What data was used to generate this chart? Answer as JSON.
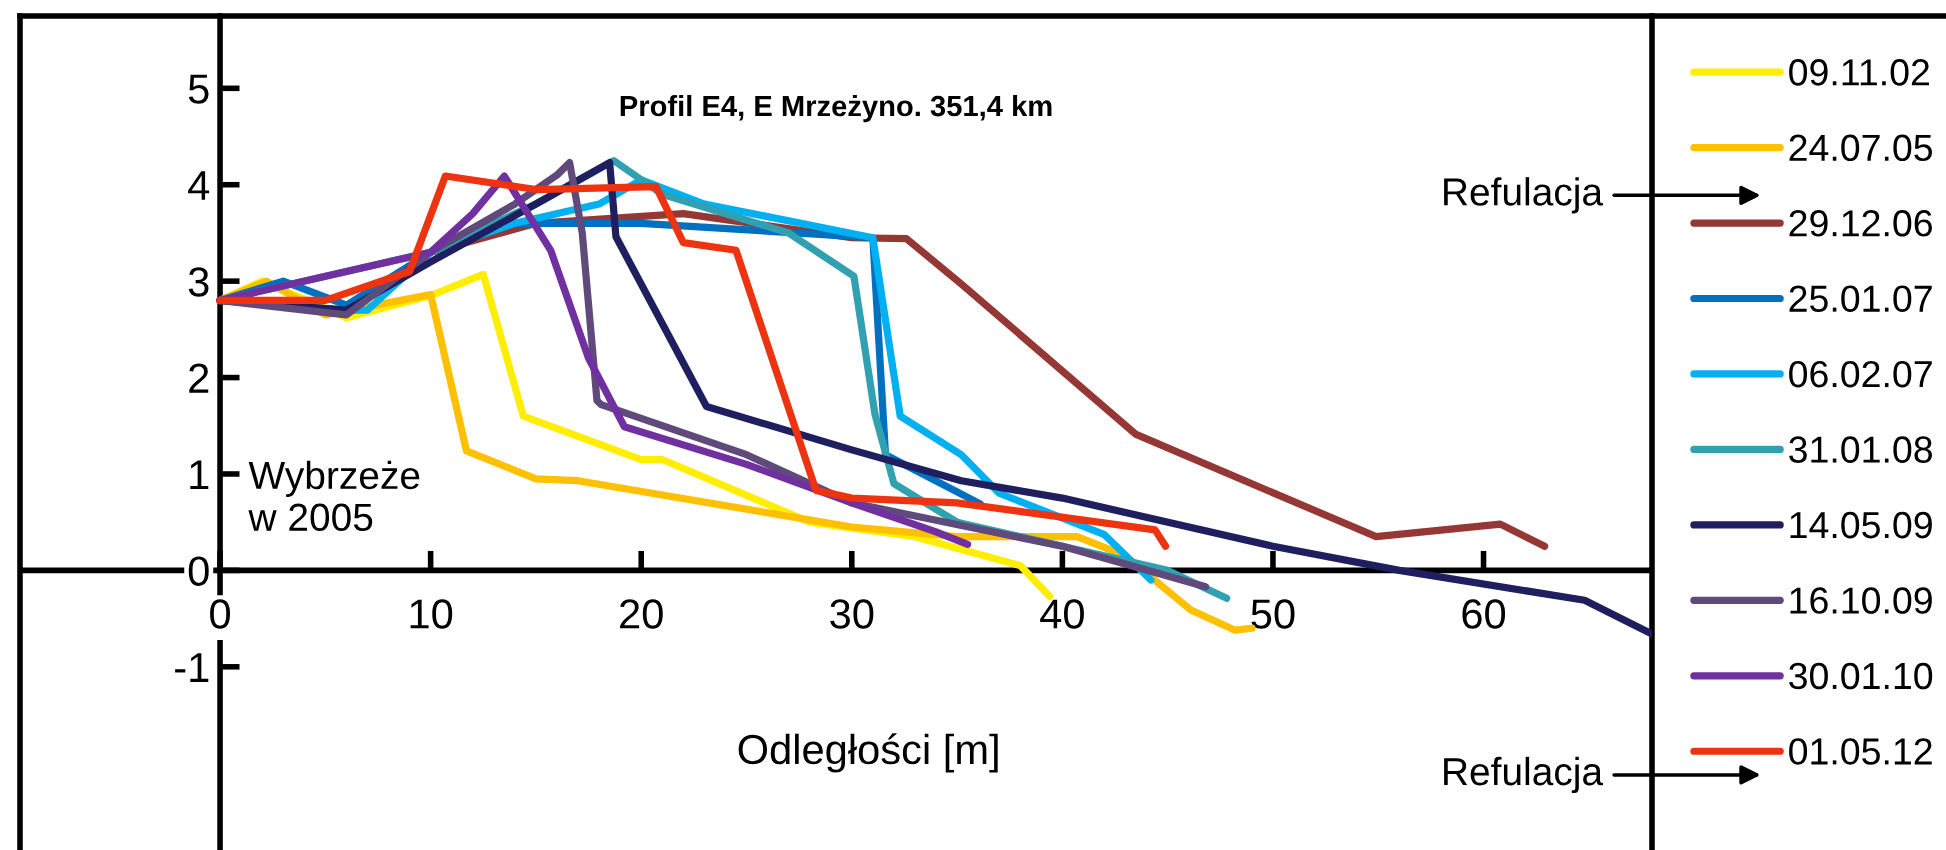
{
  "chart_data": {
    "type": "line",
    "title": "Profil E4, E Mrzeżyno. 351,4 km",
    "xlabel": "Odległości [m]",
    "xlim": [
      -9.5,
      68
    ],
    "ylim": [
      -2.9,
      5.75
    ],
    "xticks": [
      0,
      10,
      20,
      30,
      40,
      50,
      60
    ],
    "yticks": [
      -1,
      0,
      1,
      2,
      3,
      4,
      5
    ],
    "grid": false,
    "legend": "right",
    "marker": "none",
    "line_style": "solid",
    "annotations": [
      "Wybrzeże\nw 2005",
      "Refulacja",
      "Refulacja"
    ],
    "series": [
      {
        "name": "09.11.02",
        "color": "#ffee00",
        "x": [
          0,
          2,
          6,
          10,
          12.5,
          14.4,
          20,
          21,
          28,
          33,
          38,
          39.4
        ],
        "values": [
          2.8,
          3.0,
          2.62,
          2.85,
          3.07,
          1.6,
          1.15,
          1.15,
          0.5,
          0.35,
          0.05,
          -0.27
        ]
      },
      {
        "name": "24.07.05",
        "color": "#ffc000",
        "x": [
          0,
          2.2,
          5,
          10,
          11.7,
          15,
          17,
          30,
          35,
          40.7,
          43,
          46.1,
          48.2,
          49
        ],
        "values": [
          2.8,
          3.0,
          2.65,
          2.86,
          1.24,
          0.95,
          0.93,
          0.45,
          0.35,
          0.35,
          0.15,
          -0.41,
          -0.62,
          -0.6
        ]
      },
      {
        "name": "29.12.06",
        "color": "#953735",
        "x": [
          0,
          6,
          10,
          15,
          22,
          30,
          32.6,
          35.2,
          43.5,
          54.9,
          60.8,
          62.9
        ],
        "values": [
          2.8,
          2.7,
          3.3,
          3.6,
          3.7,
          3.45,
          3.44,
          2.97,
          1.41,
          0.35,
          0.48,
          0.25
        ]
      },
      {
        "name": "25.01.07",
        "color": "#0070c0",
        "x": [
          0,
          3,
          6,
          10,
          13,
          20,
          31,
          31.6,
          36.1
        ],
        "values": [
          2.8,
          3.0,
          2.75,
          3.3,
          3.6,
          3.6,
          3.45,
          1.2,
          0.69
        ]
      },
      {
        "name": "06.02.07",
        "color": "#00b0f0",
        "x": [
          0,
          5,
          7,
          10,
          14,
          18,
          20,
          23,
          31,
          32.3,
          35.2,
          37,
          42,
          44.2
        ],
        "values": [
          2.8,
          2.7,
          2.7,
          3.3,
          3.6,
          3.8,
          4.05,
          3.8,
          3.45,
          1.6,
          1.2,
          0.8,
          0.37,
          -0.1
        ]
      },
      {
        "name": "31.01.08",
        "color": "#31a0b0",
        "x": [
          0,
          10,
          15,
          18.7,
          21,
          27,
          30.1,
          31.1,
          32,
          35,
          40,
          45,
          47.8
        ],
        "values": [
          2.8,
          3.3,
          3.8,
          4.25,
          3.9,
          3.5,
          3.05,
          1.62,
          0.9,
          0.5,
          0.25,
          0.0,
          -0.29
        ]
      },
      {
        "name": "14.05.09",
        "color": "#1f1f5f",
        "x": [
          0,
          6,
          10,
          15,
          18.5,
          18.8,
          23.1,
          30,
          35.2,
          40,
          50,
          56,
          64.8,
          68
        ],
        "values": [
          2.8,
          2.7,
          3.2,
          3.8,
          4.23,
          3.46,
          1.7,
          1.25,
          0.93,
          0.75,
          0.25,
          0.0,
          -0.31,
          -0.66
        ]
      },
      {
        "name": "16.10.09",
        "color": "#604a7b",
        "x": [
          0,
          6,
          10,
          14,
          16,
          16.6,
          17.2,
          17.9,
          18.1,
          25,
          30,
          40,
          46.8
        ],
        "values": [
          2.8,
          2.65,
          3.3,
          3.8,
          4.1,
          4.23,
          3.5,
          1.76,
          1.72,
          1.2,
          0.7,
          0.25,
          -0.17
        ]
      },
      {
        "name": "30.01.10",
        "color": "#7030a0",
        "x": [
          0,
          10,
          12,
          13.5,
          15.7,
          17.5,
          19.2,
          25,
          30,
          34,
          35.5
        ],
        "values": [
          2.8,
          3.3,
          3.7,
          4.09,
          3.32,
          2.2,
          1.49,
          1.1,
          0.7,
          0.4,
          0.27
        ]
      },
      {
        "name": "01.05.12",
        "color": "#ee3310",
        "x": [
          0,
          5,
          9,
          10.7,
          15,
          20.7,
          22,
          24.5,
          28.3,
          30,
          35,
          44.4,
          44.9
        ],
        "values": [
          2.8,
          2.8,
          3.1,
          4.09,
          3.95,
          3.98,
          3.4,
          3.32,
          0.83,
          0.75,
          0.7,
          0.42,
          0.25
        ]
      }
    ]
  }
}
